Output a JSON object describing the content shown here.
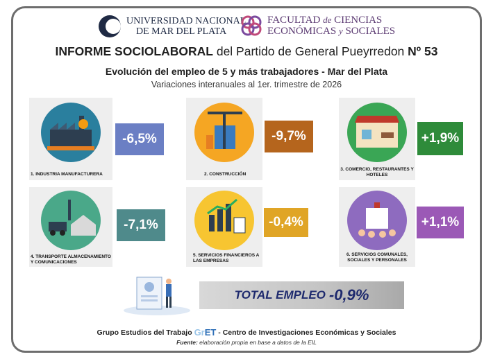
{
  "header": {
    "university_line1": "UNIVERSIDAD NACIONAL",
    "university_line2": "DE MAR DEL PLATA",
    "faculty_line1_a": "FACULTAD ",
    "faculty_line1_b": "de",
    "faculty_line1_c": " CIENCIAS",
    "faculty_line2_a": "ECONÓMICAS ",
    "faculty_line2_b": "y",
    "faculty_line2_c": " SOCIALES"
  },
  "title_bold": "INFORME SOCIOLABORAL",
  "title_regular": " del Partido de General Pueyrredon ",
  "title_number": "Nº 53",
  "subtitle": "Evolución del empleo de 5 y más trabajadores - Mar del Plata",
  "subsubtitle": "Variaciones interanuales al 1er. trimestre de 2026",
  "sectors": [
    {
      "label": "1. INDUSTRIA MANUFACTURERA",
      "value": "-6,5%",
      "color": "#6b7fc4",
      "icon": "factory-icon"
    },
    {
      "label": "2. CONSTRUCCIÓN",
      "value": "-9,7%",
      "color": "#b5651d",
      "icon": "construction-icon"
    },
    {
      "label": "3. COMERCIO, RESTAURANTES Y HOTELES",
      "value": "+1,9%",
      "color": "#2e8b3a",
      "icon": "store-icon"
    },
    {
      "label": "4. TRANSPORTE ALMACENAMIENTO Y COMUNICACIONES",
      "value": "-7,1%",
      "color": "#4f8a8b",
      "icon": "transport-icon"
    },
    {
      "label": "5. SERVICIOS FINANCIEROS A LAS EMPRESAS",
      "value": "-0,4%",
      "color": "#e0a526",
      "icon": "finance-icon"
    },
    {
      "label": "6. SERVICIOS COMUNALES, SOCIALES Y PERSONALES",
      "value": "+1,1%",
      "color": "#9b59b6",
      "icon": "community-icon"
    }
  ],
  "total": {
    "label": "TOTAL EMPLEO",
    "value": "-0,9%"
  },
  "footer": {
    "left": "Grupo Estudios del Trabajo ",
    "logo_g": "Gr",
    "logo_t": "ET",
    "right": " - Centro de Investigaciones Económicas y Sociales",
    "source_label": "Fuente:",
    "source_text": "  elaboración propia en base a datos de la EIL"
  }
}
